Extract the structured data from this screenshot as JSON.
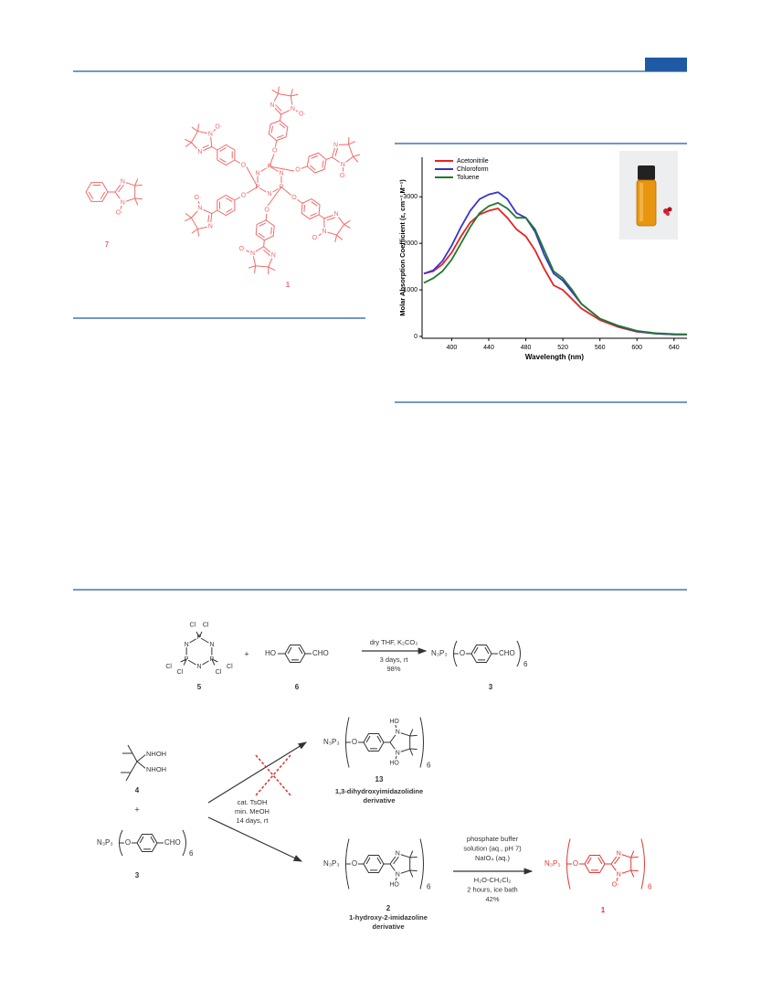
{
  "figure_labels": {
    "c7": "7",
    "c1": "1"
  },
  "atoms": {
    "N": "N",
    "O": "O",
    "Orad": "O·",
    "P": "P",
    "Cl": "Cl",
    "HO": "HO",
    "CHO": "CHO",
    "NHOH": "NHOH",
    "N3P3": "N₃P₃",
    "six": "6",
    "plus": "+"
  },
  "chart_data": {
    "type": "line",
    "ylabel": "Molar Absorption Coefficient (ε, cm⁻¹.M⁻¹)",
    "xlabel": "Wavelength (nm)",
    "x": [
      370,
      380,
      390,
      400,
      410,
      420,
      430,
      440,
      450,
      460,
      470,
      480,
      490,
      500,
      510,
      520,
      530,
      540,
      560,
      580,
      600,
      620,
      640,
      654
    ],
    "series": [
      {
        "name": "Acetonitrile",
        "color": "#e52222",
        "values": [
          1350,
          1400,
          1550,
          1800,
          2150,
          2450,
          2620,
          2700,
          2750,
          2550,
          2300,
          2150,
          1850,
          1450,
          1100,
          1000,
          800,
          600,
          350,
          200,
          100,
          60,
          40,
          40
        ]
      },
      {
        "name": "Chloroform",
        "color": "#3535d0",
        "values": [
          1350,
          1420,
          1620,
          1950,
          2350,
          2700,
          2950,
          3050,
          3100,
          2950,
          2650,
          2550,
          2250,
          1750,
          1350,
          1200,
          950,
          700,
          380,
          220,
          110,
          60,
          40,
          40
        ]
      },
      {
        "name": "Toluene",
        "color": "#1f7a2e",
        "values": [
          1150,
          1250,
          1400,
          1650,
          2000,
          2350,
          2650,
          2800,
          2870,
          2750,
          2550,
          2550,
          2300,
          1850,
          1400,
          1250,
          1000,
          700,
          380,
          230,
          120,
          70,
          50,
          45
        ]
      }
    ],
    "xlim": [
      368,
      654
    ],
    "ylim": [
      -40,
      3850
    ],
    "xticks": [
      400,
      440,
      480,
      520,
      560,
      600,
      640
    ],
    "yticks": [
      0,
      1000,
      2000,
      3000
    ],
    "legend": "upper left"
  },
  "scheme": {
    "compounds": {
      "c5": "5",
      "c6": "6",
      "c3a": "3",
      "c4": "4",
      "c3b": "3",
      "c13": "13",
      "c2": "2",
      "c1": "1"
    },
    "step1": {
      "above": "dry THF, K₂CO₃",
      "below": [
        "3 days, rt",
        "98%"
      ]
    },
    "step2": [
      "cat. TsOH",
      "min. MeOH",
      "14 days, rt"
    ],
    "product13": [
      "1,3-dihydroxyimidazolidine",
      "derivative"
    ],
    "product2": [
      "1-hydroxy-2-imidazoline",
      "derivative"
    ],
    "step3": {
      "above": [
        "phosphate buffer",
        "solution (aq., pH 7)",
        "NaIO₄ (aq.)"
      ],
      "below": [
        "H₂O-CH₂Cl₂",
        "2 hours, ice bath",
        "42%"
      ]
    }
  }
}
